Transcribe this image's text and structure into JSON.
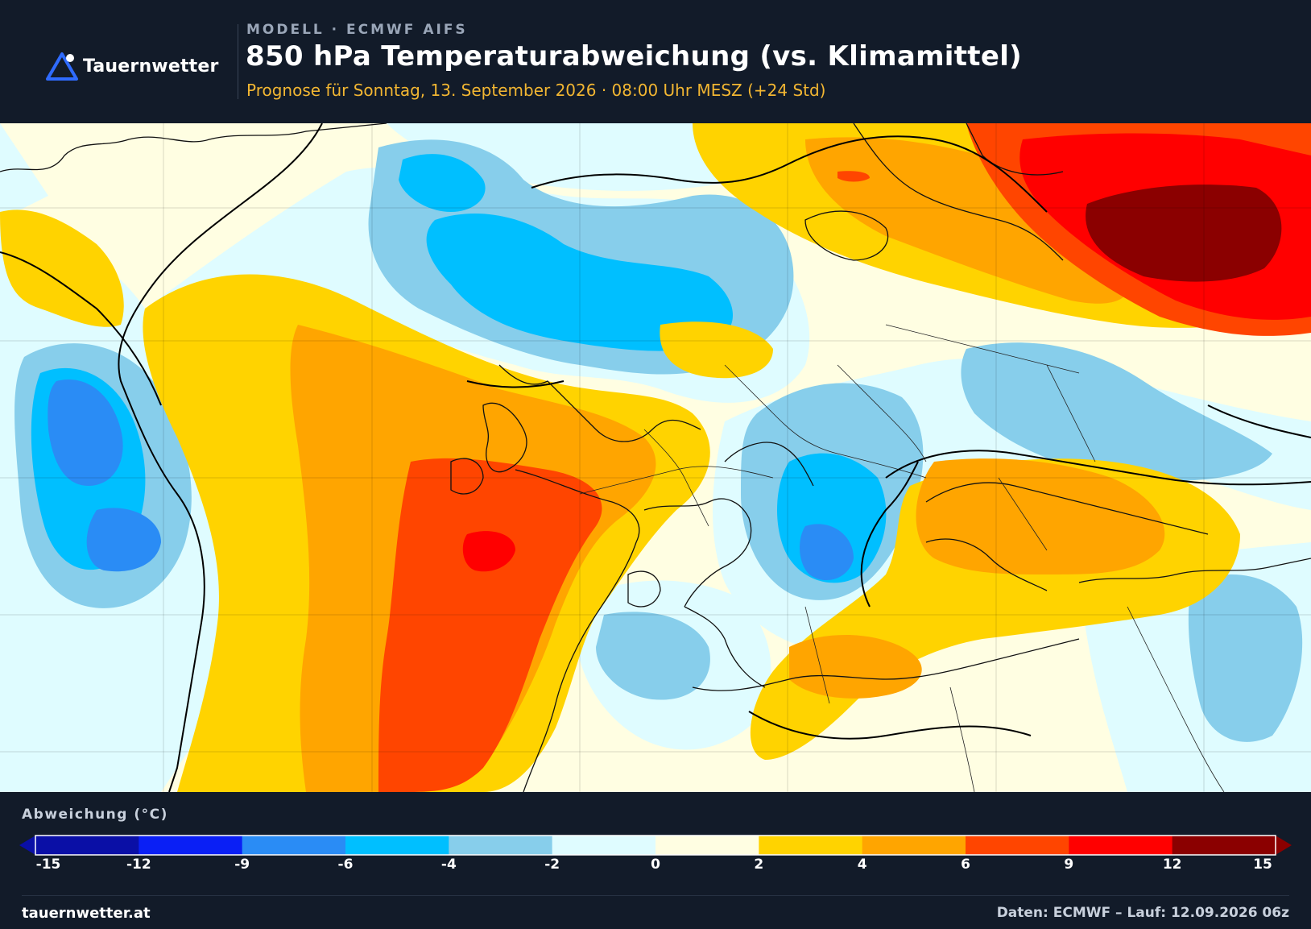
{
  "header": {
    "logo_text": "Tauernwetter",
    "eyebrow": "MODELL · ECMWF AIFS",
    "title": "850 hPa Temperaturabweichung (vs. Klimamittel)",
    "subtitle": "Prognose für Sonntag, 13. September 2026 · 08:00 Uhr MESZ  (+24 Std)"
  },
  "legend": {
    "title": "Abweichung (°C)",
    "ticks": [
      "-15",
      "-12",
      "-9",
      "-6",
      "-4",
      "-2",
      "0",
      "2",
      "4",
      "6",
      "9",
      "12",
      "15"
    ],
    "colors": [
      "#0a0fa6",
      "#0a1ff5",
      "#2a8cf5",
      "#00bfff",
      "#87ceeb",
      "#dffcff",
      "#fffee2",
      "#ffd300",
      "#ffa500",
      "#ff4500",
      "#ff0000",
      "#8b0000"
    ]
  },
  "footer": {
    "site": "tauernwetter.at",
    "source": "Daten: ECMWF – Lauf: 12.09.2026 06z"
  },
  "map": {
    "field": "850 hPa temperature anomaly",
    "colors": {
      "strong_cold": "#2a8cf5",
      "cold": "#00bfff",
      "cool": "#87ceeb",
      "slightly_cool": "#dffcff",
      "neutral": "#fffee2",
      "slightly_warm": "#ffd300",
      "warm": "#ffa500",
      "hot": "#ff4500",
      "very_hot": "#ff0000",
      "extreme": "#8b0000"
    }
  }
}
